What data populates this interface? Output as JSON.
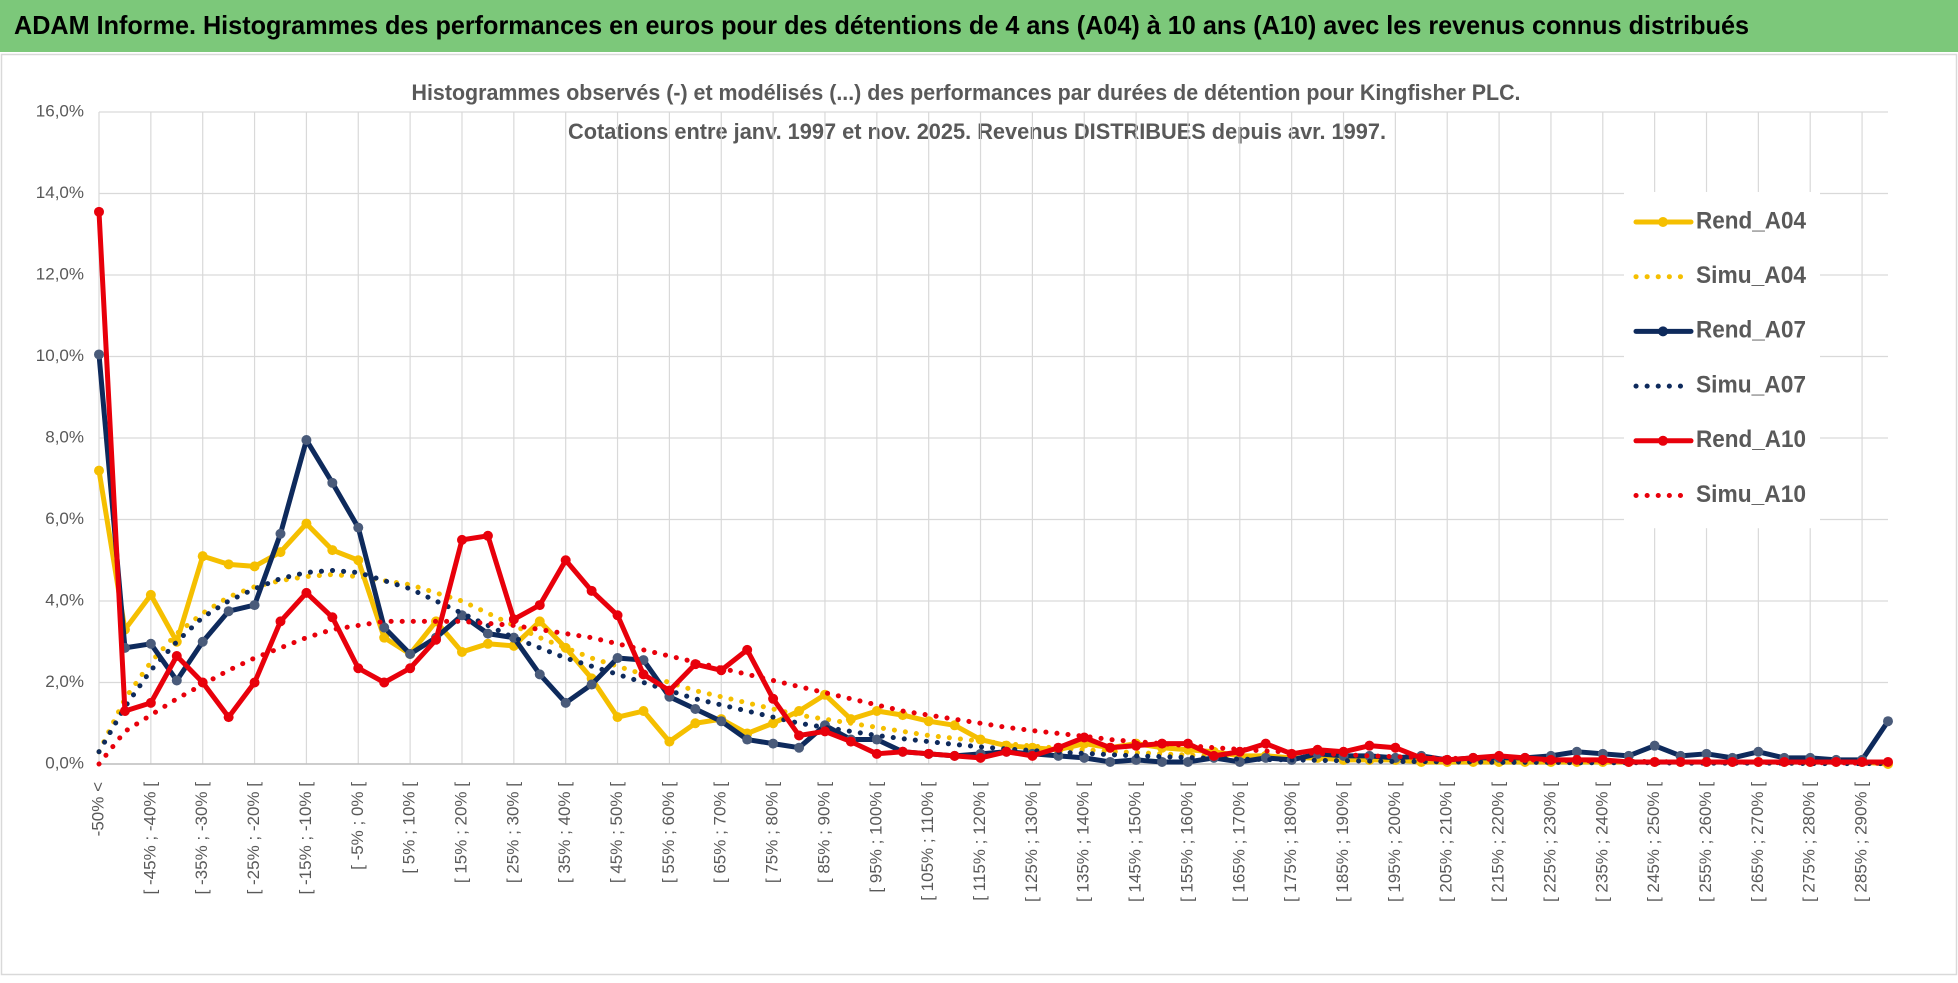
{
  "chart_data": {
    "type": "line",
    "banner": "ADAM Informe. Histogrammes des performances en euros pour des détentions de 4 ans (A04) à 10 ans (A10) avec les revenus connus distribués",
    "title": "Histogrammes observés (-) et modélisés (...) des performances par durées de détention pour Kingfisher PLC.",
    "subtitle": "Cotations entre janv. 1997 et nov. 2025. Revenus DISTRIBUES depuis avr. 1997.",
    "categories": [
      "-50% <",
      null,
      "[ -45% ; -40% [",
      null,
      "[ -35% ; -30% [",
      null,
      "[ -25% ; -20% [",
      null,
      "[ -15% ; -10% [",
      null,
      "[ -5% ; 0% [",
      null,
      "[ 5% ; 10% [",
      null,
      "[ 15% ; 20% [",
      null,
      "[ 25% ; 30% [",
      null,
      "[ 35% ; 40% [",
      null,
      "[ 45% ; 50% [",
      null,
      "[ 55% ; 60% [",
      null,
      "[ 65% ; 70% [",
      null,
      "[ 75% ; 80% [",
      null,
      "[ 85% ; 90% [",
      null,
      "[ 95% ; 100% [",
      null,
      "[ 105% ; 110% [",
      null,
      "[ 115% ; 120% [",
      null,
      "[ 125% ; 130% [",
      null,
      "[ 135% ; 140% [",
      null,
      "[ 145% ; 150% [",
      null,
      "[ 155% ; 160% [",
      null,
      "[ 165% ; 170% [",
      null,
      "[ 175% ; 180% [",
      null,
      "[ 185% ; 190% [",
      null,
      "[ 195% ; 200% [",
      null,
      "[ 205% ; 210% [",
      null,
      "[ 215% ; 220% [",
      null,
      "[ 225% ; 230% [",
      null,
      "[ 235% ; 240% [",
      null,
      "[ 245% ; 250% [",
      null,
      "[ 255% ; 260% [",
      null,
      "[ 265% ; 270% [",
      null,
      "[ 275% ; 280% [",
      null,
      "[ 285% ; 290% [",
      null
    ],
    "ylim": [
      0,
      16
    ],
    "yticks": [
      {
        "value": 0,
        "label": "0,0%"
      },
      {
        "value": 2,
        "label": "2,0%"
      },
      {
        "value": 4,
        "label": "4,0%"
      },
      {
        "value": 6,
        "label": "6,0%"
      },
      {
        "value": 8,
        "label": "8,0%"
      },
      {
        "value": 10,
        "label": "10,0%"
      },
      {
        "value": 12,
        "label": "12,0%"
      },
      {
        "value": 14,
        "label": "14,0%"
      },
      {
        "value": 16,
        "label": "16,0%"
      }
    ],
    "grid": true,
    "legend": "right",
    "series": [
      {
        "name": "Rend_A04",
        "color": "#f5bf00",
        "line_style": "solid",
        "markers": true,
        "values": [
          7.2,
          3.3,
          4.15,
          3.0,
          5.1,
          4.9,
          4.85,
          5.2,
          5.9,
          5.25,
          5.0,
          3.1,
          2.7,
          3.5,
          2.75,
          2.95,
          2.9,
          3.5,
          2.85,
          2.1,
          1.15,
          1.3,
          0.55,
          1.0,
          1.1,
          0.75,
          1.0,
          1.3,
          1.7,
          1.1,
          1.3,
          1.2,
          1.05,
          0.95,
          0.6,
          0.45,
          0.4,
          0.35,
          0.5,
          0.4,
          0.5,
          0.4,
          0.35,
          0.3,
          0.2,
          0.2,
          0.15,
          0.15,
          0.1,
          0.1,
          0.1,
          0.05,
          0.05,
          0.05,
          0.05,
          0.05,
          0.05,
          0.05,
          0.05,
          0.05,
          0.05,
          0.05,
          0.05,
          0.05,
          0.05,
          0.05,
          0.05,
          0.05,
          0.05,
          0.0
        ]
      },
      {
        "name": "Simu_A04",
        "color": "#f5bf00",
        "line_style": "dotted",
        "markers": false,
        "values": [
          0.3,
          1.6,
          2.5,
          3.2,
          3.7,
          4.1,
          4.35,
          4.5,
          4.6,
          4.65,
          4.6,
          4.5,
          4.4,
          4.2,
          4.0,
          3.7,
          3.4,
          3.1,
          2.85,
          2.6,
          2.4,
          2.2,
          2.0,
          1.8,
          1.65,
          1.5,
          1.35,
          1.2,
          1.1,
          1.0,
          0.9,
          0.8,
          0.7,
          0.63,
          0.56,
          0.5,
          0.44,
          0.39,
          0.35,
          0.31,
          0.28,
          0.25,
          0.22,
          0.2,
          0.18,
          0.16,
          0.14,
          0.12,
          0.11,
          0.1,
          0.09,
          0.08,
          0.08,
          0.07,
          0.06,
          0.06,
          0.05,
          0.05,
          0.04,
          0.04,
          0.04,
          0.03,
          0.03,
          0.03,
          0.03,
          0.02,
          0.02,
          0.02,
          0.02,
          0.02
        ]
      },
      {
        "name": "Rend_A07",
        "color": "#0e2a5c",
        "line_style": "solid",
        "markers": true,
        "values": [
          10.05,
          2.85,
          2.95,
          2.05,
          3.0,
          3.75,
          3.9,
          5.65,
          7.95,
          6.9,
          5.8,
          3.35,
          2.7,
          3.1,
          3.65,
          3.2,
          3.1,
          2.2,
          1.5,
          1.95,
          2.6,
          2.55,
          1.65,
          1.35,
          1.05,
          0.6,
          0.5,
          0.4,
          0.95,
          0.6,
          0.6,
          0.3,
          0.25,
          0.2,
          0.25,
          0.3,
          0.25,
          0.2,
          0.15,
          0.05,
          0.1,
          0.05,
          0.05,
          0.15,
          0.05,
          0.15,
          0.1,
          0.25,
          0.2,
          0.2,
          0.15,
          0.2,
          0.1,
          0.15,
          0.15,
          0.15,
          0.2,
          0.3,
          0.25,
          0.2,
          0.45,
          0.2,
          0.25,
          0.15,
          0.3,
          0.15,
          0.15,
          0.1,
          0.1,
          1.05
        ]
      },
      {
        "name": "Simu_A07",
        "color": "#0e2a5c",
        "line_style": "dotted",
        "markers": false,
        "values": [
          0.3,
          1.4,
          2.3,
          3.0,
          3.6,
          4.0,
          4.3,
          4.55,
          4.7,
          4.75,
          4.7,
          4.5,
          4.3,
          4.0,
          3.7,
          3.4,
          3.1,
          2.85,
          2.6,
          2.4,
          2.2,
          2.0,
          1.8,
          1.6,
          1.45,
          1.3,
          1.15,
          1.0,
          0.9,
          0.8,
          0.7,
          0.62,
          0.55,
          0.48,
          0.42,
          0.37,
          0.33,
          0.29,
          0.26,
          0.23,
          0.2,
          0.18,
          0.16,
          0.14,
          0.12,
          0.11,
          0.1,
          0.09,
          0.08,
          0.07,
          0.06,
          0.06,
          0.05,
          0.05,
          0.04,
          0.04,
          0.04,
          0.03,
          0.03,
          0.03,
          0.03,
          0.02,
          0.02,
          0.02,
          0.02,
          0.02,
          0.01,
          0.01,
          0.01,
          0.01
        ]
      },
      {
        "name": "Rend_A10",
        "color": "#e8000b",
        "line_style": "solid",
        "markers": true,
        "values": [
          13.55,
          1.3,
          1.5,
          2.65,
          2.0,
          1.15,
          2.0,
          3.5,
          4.2,
          3.6,
          2.35,
          2.0,
          2.35,
          3.05,
          5.5,
          5.6,
          3.55,
          3.9,
          5.0,
          4.25,
          3.65,
          2.2,
          1.8,
          2.45,
          2.3,
          2.8,
          1.6,
          0.7,
          0.8,
          0.55,
          0.25,
          0.3,
          0.25,
          0.2,
          0.15,
          0.3,
          0.2,
          0.4,
          0.65,
          0.4,
          0.45,
          0.5,
          0.5,
          0.2,
          0.3,
          0.5,
          0.25,
          0.35,
          0.3,
          0.45,
          0.4,
          0.15,
          0.1,
          0.15,
          0.2,
          0.15,
          0.1,
          0.1,
          0.1,
          0.05,
          0.05,
          0.05,
          0.05,
          0.05,
          0.05,
          0.05,
          0.05,
          0.05,
          0.05,
          0.05
        ]
      },
      {
        "name": "Simu_A10",
        "color": "#e8000b",
        "line_style": "dotted",
        "markers": false,
        "values": [
          0.0,
          0.8,
          1.2,
          1.6,
          1.95,
          2.3,
          2.6,
          2.85,
          3.1,
          3.3,
          3.4,
          3.5,
          3.5,
          3.5,
          3.5,
          3.45,
          3.4,
          3.3,
          3.2,
          3.1,
          2.95,
          2.8,
          2.65,
          2.5,
          2.35,
          2.2,
          2.05,
          1.9,
          1.75,
          1.6,
          1.45,
          1.3,
          1.2,
          1.1,
          1.0,
          0.9,
          0.82,
          0.75,
          0.68,
          0.6,
          0.55,
          0.5,
          0.45,
          0.4,
          0.36,
          0.32,
          0.29,
          0.26,
          0.23,
          0.2,
          0.18,
          0.16,
          0.14,
          0.13,
          0.11,
          0.1,
          0.09,
          0.08,
          0.07,
          0.06,
          0.06,
          0.05,
          0.05,
          0.04,
          0.04,
          0.03,
          0.03,
          0.03,
          0.02,
          0.02
        ]
      }
    ]
  }
}
